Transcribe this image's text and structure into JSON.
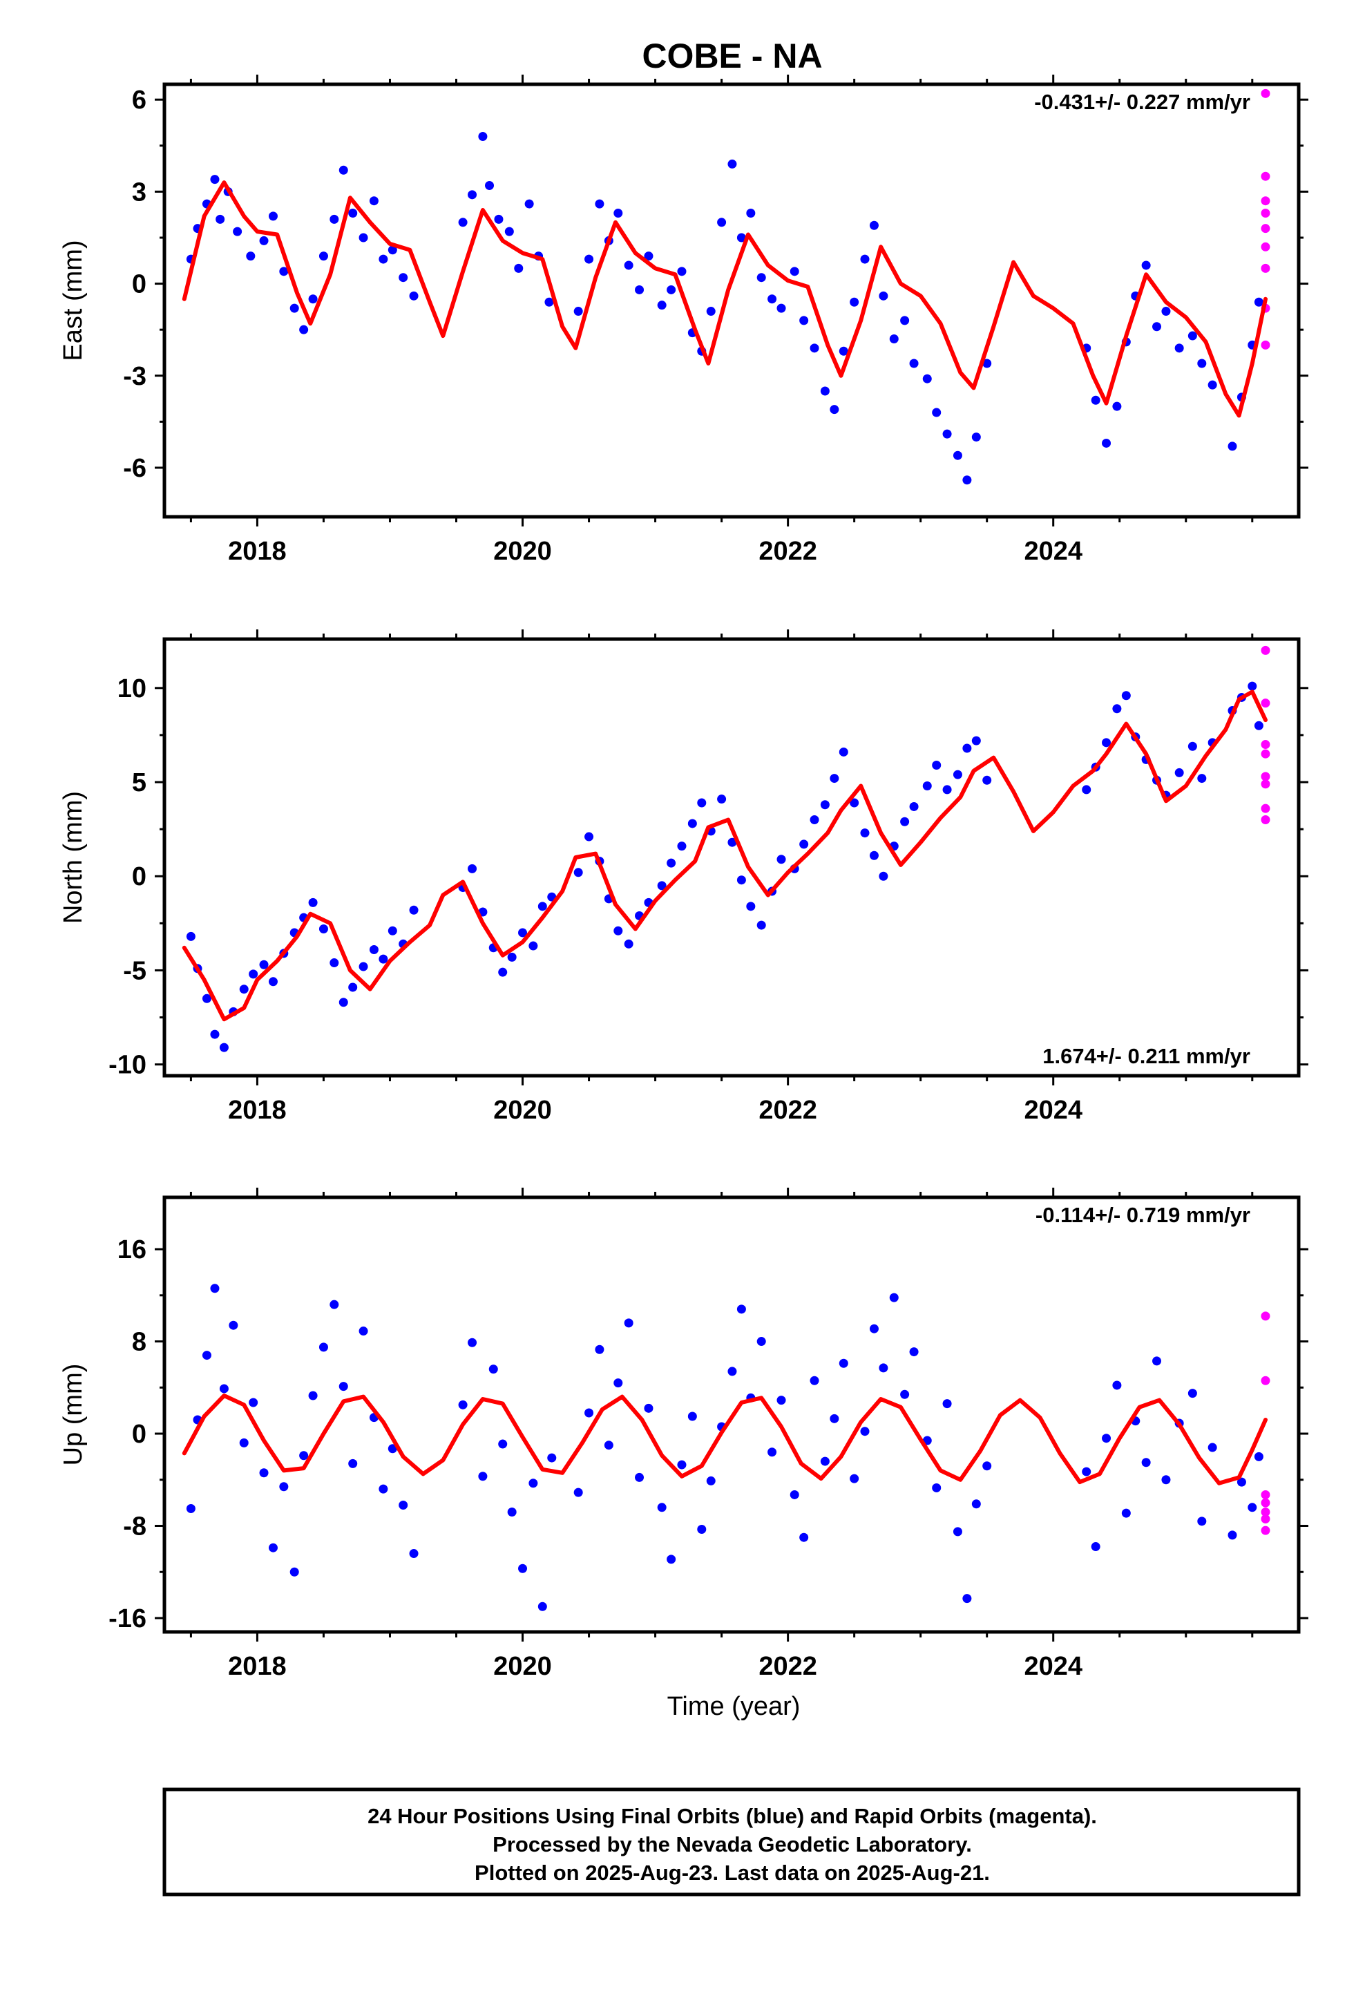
{
  "title": "COBE - NA",
  "colors": {
    "final": "#0000ff",
    "rapid": "#ff00ff",
    "model": "#ff0000",
    "frame": "#000000"
  },
  "xaxis": {
    "label": "Time (year)",
    "ticks": [
      "2018",
      "2020",
      "2022",
      "2024"
    ]
  },
  "footer": [
    "24 Hour Positions Using Final Orbits (blue) and Rapid Orbits (magenta).",
    "Processed by the Nevada Geodetic Laboratory.",
    "Plotted on 2025-Aug-23. Last data on 2025-Aug-21."
  ],
  "chart_data": [
    {
      "type": "scatter",
      "component": "east",
      "ylabel": "East (mm)",
      "xlim": [
        2017.3,
        2025.85
      ],
      "ylim": [
        -7.6,
        6.5
      ],
      "yticks": [
        6,
        3,
        0,
        -3,
        -6
      ],
      "yticklabels": [
        "6",
        "3",
        "0",
        "-3",
        "-6"
      ],
      "rate_text": "-0.431+/- 0.227 mm/yr",
      "rate_position": "top-right",
      "model": {
        "x": [
          2017.45,
          2017.6,
          2017.75,
          2017.9,
          2018.0,
          2018.15,
          2018.3,
          2018.4,
          2018.55,
          2018.7,
          2018.85,
          2019.0,
          2019.15,
          2019.3,
          2019.4,
          2019.55,
          2019.7,
          2019.85,
          2020.0,
          2020.15,
          2020.3,
          2020.4,
          2020.55,
          2020.7,
          2020.85,
          2021.0,
          2021.15,
          2021.3,
          2021.4,
          2021.55,
          2021.7,
          2021.85,
          2022.0,
          2022.15,
          2022.3,
          2022.4,
          2022.55,
          2022.7,
          2022.85,
          2023.0,
          2023.15,
          2023.3,
          2023.4,
          2023.55,
          2023.7,
          2023.85,
          2024.0,
          2024.15,
          2024.3,
          2024.4,
          2024.55,
          2024.7,
          2024.85,
          2025.0,
          2025.15,
          2025.3,
          2025.4,
          2025.5,
          2025.6
        ],
        "y": [
          -0.5,
          2.2,
          3.3,
          2.2,
          1.7,
          1.6,
          -0.3,
          -1.3,
          0.3,
          2.8,
          2.0,
          1.3,
          1.1,
          -0.6,
          -1.7,
          0.4,
          2.4,
          1.4,
          1.0,
          0.8,
          -1.4,
          -2.1,
          0.2,
          2.0,
          1.0,
          0.5,
          0.3,
          -1.5,
          -2.6,
          -0.2,
          1.6,
          0.6,
          0.1,
          -0.1,
          -2.0,
          -3.0,
          -1.2,
          1.2,
          0.0,
          -0.4,
          -1.3,
          -2.9,
          -3.4,
          -1.4,
          0.7,
          -0.4,
          -0.8,
          -1.3,
          -3.0,
          -3.9,
          -1.7,
          0.3,
          -0.6,
          -1.1,
          -1.9,
          -3.6,
          -4.3,
          -2.6,
          -0.5
        ]
      },
      "final_points": {
        "x": [
          2017.5,
          2017.55,
          2017.62,
          2017.68,
          2017.72,
          2017.78,
          2017.85,
          2017.95,
          2018.05,
          2018.12,
          2018.2,
          2018.28,
          2018.35,
          2018.42,
          2018.5,
          2018.58,
          2018.65,
          2018.72,
          2018.8,
          2018.88,
          2018.95,
          2019.02,
          2019.1,
          2019.18,
          2019.55,
          2019.62,
          2019.7,
          2019.75,
          2019.82,
          2019.9,
          2019.97,
          2020.05,
          2020.12,
          2020.2,
          2020.42,
          2020.5,
          2020.58,
          2020.65,
          2020.72,
          2020.8,
          2020.88,
          2020.95,
          2021.05,
          2021.12,
          2021.2,
          2021.28,
          2021.35,
          2021.42,
          2021.5,
          2021.58,
          2021.65,
          2021.72,
          2021.8,
          2021.88,
          2021.95,
          2022.05,
          2022.12,
          2022.2,
          2022.28,
          2022.35,
          2022.42,
          2022.5,
          2022.58,
          2022.65,
          2022.72,
          2022.8,
          2022.88,
          2022.95,
          2023.05,
          2023.12,
          2023.2,
          2023.28,
          2023.35,
          2023.42,
          2023.5,
          2024.25,
          2024.32,
          2024.4,
          2024.48,
          2024.55,
          2024.62,
          2024.7,
          2024.78,
          2024.85,
          2024.95,
          2025.05,
          2025.12,
          2025.2,
          2025.35,
          2025.42,
          2025.5,
          2025.55
        ],
        "y": [
          0.8,
          1.8,
          2.6,
          3.4,
          2.1,
          3.0,
          1.7,
          0.9,
          1.4,
          2.2,
          0.4,
          -0.8,
          -1.5,
          -0.5,
          0.9,
          2.1,
          3.7,
          2.3,
          1.5,
          2.7,
          0.8,
          1.1,
          0.2,
          -0.4,
          2.0,
          2.9,
          4.8,
          3.2,
          2.1,
          1.7,
          0.5,
          2.6,
          0.9,
          -0.6,
          -0.9,
          0.8,
          2.6,
          1.4,
          2.3,
          0.6,
          -0.2,
          0.9,
          -0.7,
          -0.2,
          0.4,
          -1.6,
          -2.2,
          -0.9,
          2.0,
          3.9,
          1.5,
          2.3,
          0.2,
          -0.5,
          -0.8,
          0.4,
          -1.2,
          -2.1,
          -3.5,
          -4.1,
          -2.2,
          -0.6,
          0.8,
          1.9,
          -0.4,
          -1.8,
          -1.2,
          -2.6,
          -3.1,
          -4.2,
          -4.9,
          -5.6,
          -6.4,
          -5.0,
          -2.6,
          -2.1,
          -3.8,
          -5.2,
          -4.0,
          -1.9,
          -0.4,
          0.6,
          -1.4,
          -0.9,
          -2.1,
          -1.7,
          -2.6,
          -3.3,
          -5.3,
          -3.7,
          -2.0,
          -0.6
        ]
      },
      "rapid_points": {
        "x": [
          2025.6,
          2025.6,
          2025.6,
          2025.6,
          2025.6,
          2025.6,
          2025.6,
          2025.6,
          2025.6
        ],
        "y": [
          6.2,
          3.5,
          2.7,
          2.3,
          1.8,
          1.2,
          0.5,
          -0.8,
          -2.0
        ]
      }
    },
    {
      "type": "scatter",
      "component": "north",
      "ylabel": "North (mm)",
      "xlim": [
        2017.3,
        2025.85
      ],
      "ylim": [
        -10.6,
        12.6
      ],
      "yticks": [
        10,
        5,
        0,
        -5,
        -10
      ],
      "yticklabels": [
        "10",
        "5",
        "0",
        "-5",
        "-10"
      ],
      "rate_text": "1.674+/- 0.211 mm/yr",
      "rate_position": "bottom-right",
      "model": {
        "x": [
          2017.45,
          2017.6,
          2017.75,
          2017.9,
          2018.0,
          2018.15,
          2018.3,
          2018.4,
          2018.55,
          2018.7,
          2018.85,
          2019.0,
          2019.15,
          2019.3,
          2019.4,
          2019.55,
          2019.7,
          2019.85,
          2020.0,
          2020.15,
          2020.3,
          2020.4,
          2020.55,
          2020.7,
          2020.85,
          2021.0,
          2021.15,
          2021.3,
          2021.4,
          2021.55,
          2021.7,
          2021.85,
          2022.0,
          2022.15,
          2022.3,
          2022.4,
          2022.55,
          2022.7,
          2022.85,
          2023.0,
          2023.15,
          2023.3,
          2023.4,
          2023.55,
          2023.7,
          2023.85,
          2024.0,
          2024.15,
          2024.3,
          2024.4,
          2024.55,
          2024.7,
          2024.85,
          2025.0,
          2025.15,
          2025.3,
          2025.4,
          2025.5,
          2025.6
        ],
        "y": [
          -3.8,
          -5.5,
          -7.6,
          -7.0,
          -5.5,
          -4.5,
          -3.2,
          -2.0,
          -2.5,
          -5.0,
          -6.0,
          -4.5,
          -3.5,
          -2.6,
          -1.0,
          -0.3,
          -2.5,
          -4.2,
          -3.5,
          -2.2,
          -0.8,
          1.0,
          1.2,
          -1.5,
          -2.8,
          -1.3,
          -0.2,
          0.8,
          2.6,
          3.0,
          0.5,
          -1.0,
          0.2,
          1.2,
          2.3,
          3.5,
          4.8,
          2.3,
          0.6,
          1.8,
          3.1,
          4.2,
          5.6,
          6.3,
          4.5,
          2.4,
          3.4,
          4.8,
          5.6,
          6.5,
          8.1,
          6.5,
          4.0,
          4.8,
          6.4,
          7.8,
          9.4,
          9.8,
          8.3
        ]
      },
      "final_points": {
        "x": [
          2017.5,
          2017.55,
          2017.62,
          2017.68,
          2017.75,
          2017.82,
          2017.9,
          2017.97,
          2018.05,
          2018.12,
          2018.2,
          2018.28,
          2018.35,
          2018.42,
          2018.5,
          2018.58,
          2018.65,
          2018.72,
          2018.8,
          2018.88,
          2018.95,
          2019.02,
          2019.1,
          2019.18,
          2019.55,
          2019.62,
          2019.7,
          2019.78,
          2019.85,
          2019.92,
          2020.0,
          2020.08,
          2020.15,
          2020.22,
          2020.42,
          2020.5,
          2020.58,
          2020.65,
          2020.72,
          2020.8,
          2020.88,
          2020.95,
          2021.05,
          2021.12,
          2021.2,
          2021.28,
          2021.35,
          2021.42,
          2021.5,
          2021.58,
          2021.65,
          2021.72,
          2021.8,
          2021.88,
          2021.95,
          2022.05,
          2022.12,
          2022.2,
          2022.28,
          2022.35,
          2022.42,
          2022.5,
          2022.58,
          2022.65,
          2022.72,
          2022.8,
          2022.88,
          2022.95,
          2023.05,
          2023.12,
          2023.2,
          2023.28,
          2023.35,
          2023.42,
          2023.5,
          2024.25,
          2024.32,
          2024.4,
          2024.48,
          2024.55,
          2024.62,
          2024.7,
          2024.78,
          2024.85,
          2024.95,
          2025.05,
          2025.12,
          2025.2,
          2025.35,
          2025.42,
          2025.5,
          2025.55
        ],
        "y": [
          -3.2,
          -4.9,
          -6.5,
          -8.4,
          -9.1,
          -7.2,
          -6.0,
          -5.2,
          -4.7,
          -5.6,
          -4.1,
          -3.0,
          -2.2,
          -1.4,
          -2.8,
          -4.6,
          -6.7,
          -5.9,
          -4.8,
          -3.9,
          -4.4,
          -2.9,
          -3.6,
          -1.8,
          -0.6,
          0.4,
          -1.9,
          -3.8,
          -5.1,
          -4.3,
          -3.0,
          -3.7,
          -1.6,
          -1.1,
          0.2,
          2.1,
          0.8,
          -1.2,
          -2.9,
          -3.6,
          -2.1,
          -1.4,
          -0.5,
          0.7,
          1.6,
          2.8,
          3.9,
          2.4,
          4.1,
          1.8,
          -0.2,
          -1.6,
          -2.6,
          -0.8,
          0.9,
          0.4,
          1.7,
          3.0,
          3.8,
          5.2,
          6.6,
          3.9,
          2.3,
          1.1,
          0.0,
          1.6,
          2.9,
          3.7,
          4.8,
          5.9,
          4.6,
          5.4,
          6.8,
          7.2,
          5.1,
          4.6,
          5.8,
          7.1,
          8.9,
          9.6,
          7.4,
          6.2,
          5.1,
          4.3,
          5.5,
          6.9,
          5.2,
          7.1,
          8.8,
          9.5,
          10.1,
          8.0
        ]
      },
      "rapid_points": {
        "x": [
          2025.6,
          2025.6,
          2025.6,
          2025.6,
          2025.6,
          2025.6,
          2025.6,
          2025.6
        ],
        "y": [
          12.0,
          9.2,
          7.0,
          6.5,
          5.3,
          4.9,
          3.6,
          3.0
        ]
      }
    },
    {
      "type": "scatter",
      "component": "up",
      "ylabel": "Up (mm)",
      "xlim": [
        2017.3,
        2025.85
      ],
      "ylim": [
        -17.2,
        20.5
      ],
      "yticks": [
        16,
        8,
        0,
        -8,
        -16
      ],
      "yticklabels": [
        "16",
        "8",
        "0",
        "-8",
        "-16"
      ],
      "rate_text": "-0.114+/- 0.719 mm/yr",
      "rate_position": "top-right",
      "model": {
        "x": [
          2017.45,
          2017.6,
          2017.75,
          2017.9,
          2018.05,
          2018.2,
          2018.35,
          2018.5,
          2018.65,
          2018.8,
          2018.95,
          2019.1,
          2019.25,
          2019.4,
          2019.55,
          2019.7,
          2019.85,
          2020.0,
          2020.15,
          2020.3,
          2020.45,
          2020.6,
          2020.75,
          2020.9,
          2021.05,
          2021.2,
          2021.35,
          2021.5,
          2021.65,
          2021.8,
          2021.95,
          2022.1,
          2022.25,
          2022.4,
          2022.55,
          2022.7,
          2022.85,
          2023.0,
          2023.15,
          2023.3,
          2023.45,
          2023.6,
          2023.75,
          2023.9,
          2024.05,
          2024.2,
          2024.35,
          2024.5,
          2024.65,
          2024.8,
          2024.95,
          2025.1,
          2025.25,
          2025.4,
          2025.5,
          2025.6
        ],
        "y": [
          -1.7,
          1.5,
          3.3,
          2.5,
          -0.6,
          -3.2,
          -3.0,
          0.0,
          2.8,
          3.2,
          1.0,
          -2.0,
          -3.5,
          -2.3,
          0.8,
          3.0,
          2.6,
          -0.3,
          -3.1,
          -3.4,
          -0.8,
          2.1,
          3.2,
          1.2,
          -1.9,
          -3.7,
          -2.8,
          0.1,
          2.7,
          3.1,
          0.6,
          -2.6,
          -3.9,
          -2.0,
          1.0,
          3.0,
          2.3,
          -0.5,
          -3.2,
          -4.0,
          -1.5,
          1.6,
          2.9,
          1.4,
          -1.7,
          -4.2,
          -3.5,
          -0.4,
          2.3,
          2.9,
          0.8,
          -2.1,
          -4.3,
          -3.8,
          -1.4,
          1.2
        ]
      },
      "final_points": {
        "x": [
          2017.5,
          2017.55,
          2017.62,
          2017.68,
          2017.75,
          2017.82,
          2017.9,
          2017.97,
          2018.05,
          2018.12,
          2018.2,
          2018.28,
          2018.35,
          2018.42,
          2018.5,
          2018.58,
          2018.65,
          2018.72,
          2018.8,
          2018.88,
          2018.95,
          2019.02,
          2019.1,
          2019.18,
          2019.55,
          2019.62,
          2019.7,
          2019.78,
          2019.85,
          2019.92,
          2020.0,
          2020.08,
          2020.15,
          2020.22,
          2020.42,
          2020.5,
          2020.58,
          2020.65,
          2020.72,
          2020.8,
          2020.88,
          2020.95,
          2021.05,
          2021.12,
          2021.2,
          2021.28,
          2021.35,
          2021.42,
          2021.5,
          2021.58,
          2021.65,
          2021.72,
          2021.8,
          2021.88,
          2021.95,
          2022.05,
          2022.12,
          2022.2,
          2022.28,
          2022.35,
          2022.42,
          2022.5,
          2022.58,
          2022.65,
          2022.72,
          2022.8,
          2022.88,
          2022.95,
          2023.05,
          2023.12,
          2023.2,
          2023.28,
          2023.35,
          2023.42,
          2023.5,
          2024.25,
          2024.32,
          2024.4,
          2024.48,
          2024.55,
          2024.62,
          2024.7,
          2024.78,
          2024.85,
          2024.95,
          2025.05,
          2025.12,
          2025.2,
          2025.35,
          2025.42,
          2025.5,
          2025.55
        ],
        "y": [
          -6.5,
          1.2,
          6.8,
          12.6,
          3.9,
          9.4,
          -0.8,
          2.7,
          -3.4,
          -9.9,
          -4.6,
          -12.0,
          -1.9,
          3.3,
          7.5,
          11.2,
          4.1,
          -2.6,
          8.9,
          1.4,
          -4.8,
          -1.3,
          -6.2,
          -10.4,
          2.5,
          7.9,
          -3.7,
          5.6,
          -0.9,
          -6.8,
          -11.7,
          -4.3,
          -15.0,
          -2.1,
          -5.1,
          1.8,
          7.3,
          -1.0,
          4.4,
          9.6,
          -3.8,
          2.2,
          -6.4,
          -10.9,
          -2.7,
          1.5,
          -8.3,
          -4.1,
          0.6,
          5.4,
          10.8,
          3.1,
          8.0,
          -1.6,
          2.9,
          -5.3,
          -9.0,
          4.6,
          -2.4,
          1.3,
          6.1,
          -3.9,
          0.2,
          9.1,
          5.7,
          11.8,
          3.4,
          7.1,
          -0.6,
          -4.7,
          2.6,
          -8.5,
          -14.3,
          -6.1,
          -2.8,
          -3.3,
          -9.8,
          -0.4,
          4.2,
          -6.9,
          1.1,
          -2.5,
          6.3,
          -4.0,
          0.9,
          3.5,
          -7.6,
          -1.2,
          -8.8,
          -4.2,
          -6.4,
          -2.0
        ]
      },
      "rapid_points": {
        "x": [
          2025.6,
          2025.6,
          2025.6,
          2025.6,
          2025.6,
          2025.6,
          2025.6
        ],
        "y": [
          10.2,
          4.6,
          -5.3,
          -6.0,
          -6.8,
          -7.4,
          -8.4
        ]
      }
    }
  ]
}
